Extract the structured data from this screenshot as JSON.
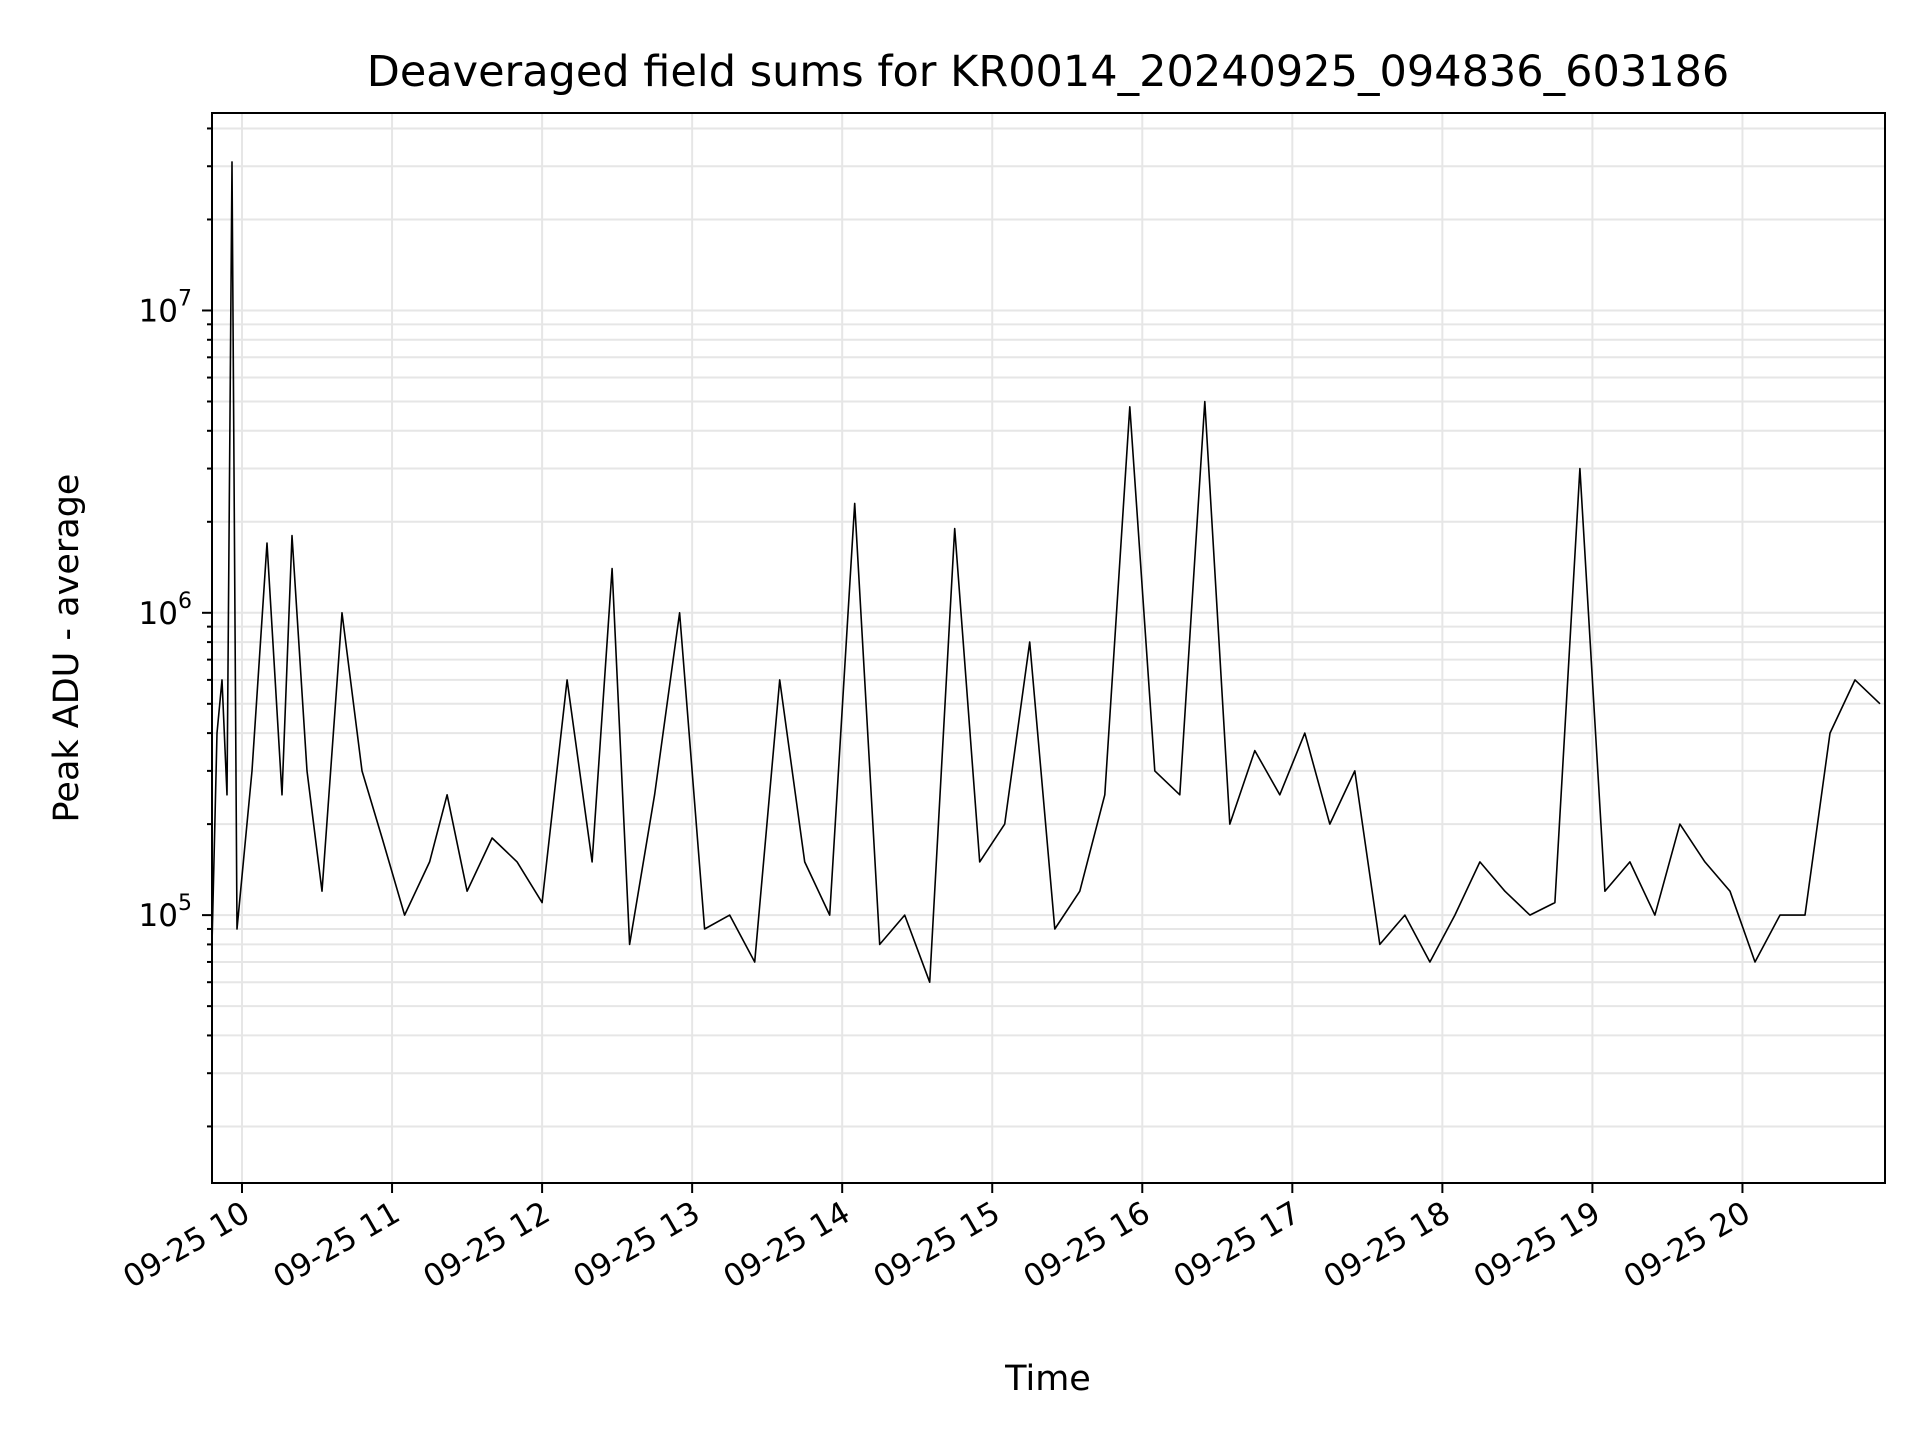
{
  "chart_data": {
    "type": "line",
    "title": "Deaveraged field sums for KR0014_20240925_094836_603186",
    "xlabel": "Time",
    "ylabel": "Peak ADU - average",
    "yscale": "log",
    "ylim": [
      13000,
      45000000
    ],
    "xlim": [
      "2024-09-25 09:48",
      "2024-09-25 20:57"
    ],
    "grid": true,
    "line_color": "#000000",
    "grid_color": "#e6e6e6",
    "x_ticks": [
      {
        "label": "09-25 10",
        "time": "2024-09-25 10:00"
      },
      {
        "label": "09-25 11",
        "time": "2024-09-25 11:00"
      },
      {
        "label": "09-25 12",
        "time": "2024-09-25 12:00"
      },
      {
        "label": "09-25 13",
        "time": "2024-09-25 13:00"
      },
      {
        "label": "09-25 14",
        "time": "2024-09-25 14:00"
      },
      {
        "label": "09-25 15",
        "time": "2024-09-25 15:00"
      },
      {
        "label": "09-25 16",
        "time": "2024-09-25 16:00"
      },
      {
        "label": "09-25 17",
        "time": "2024-09-25 17:00"
      },
      {
        "label": "09-25 18",
        "time": "2024-09-25 18:00"
      },
      {
        "label": "09-25 19",
        "time": "2024-09-25 19:00"
      },
      {
        "label": "09-25 20",
        "time": "2024-09-25 20:00"
      }
    ],
    "y_ticks": [
      {
        "base": "10",
        "exp": "5",
        "value": 100000
      },
      {
        "base": "10",
        "exp": "6",
        "value": 1000000
      },
      {
        "base": "10",
        "exp": "7",
        "value": 10000000
      }
    ],
    "x": [
      "2024-09-25 09:48",
      "2024-09-25 09:50",
      "2024-09-25 09:52",
      "2024-09-25 09:54",
      "2024-09-25 09:56",
      "2024-09-25 09:58",
      "2024-09-25 10:04",
      "2024-09-25 10:10",
      "2024-09-25 10:16",
      "2024-09-25 10:20",
      "2024-09-25 10:26",
      "2024-09-25 10:32",
      "2024-09-25 10:40",
      "2024-09-25 10:48",
      "2024-09-25 10:56",
      "2024-09-25 11:05",
      "2024-09-25 11:15",
      "2024-09-25 11:22",
      "2024-09-25 11:30",
      "2024-09-25 11:40",
      "2024-09-25 11:50",
      "2024-09-25 12:00",
      "2024-09-25 12:10",
      "2024-09-25 12:20",
      "2024-09-25 12:28",
      "2024-09-25 12:35",
      "2024-09-25 12:45",
      "2024-09-25 12:55",
      "2024-09-25 13:05",
      "2024-09-25 13:15",
      "2024-09-25 13:25",
      "2024-09-25 13:35",
      "2024-09-25 13:45",
      "2024-09-25 13:55",
      "2024-09-25 14:05",
      "2024-09-25 14:15",
      "2024-09-25 14:25",
      "2024-09-25 14:35",
      "2024-09-25 14:45",
      "2024-09-25 14:55",
      "2024-09-25 15:05",
      "2024-09-25 15:15",
      "2024-09-25 15:25",
      "2024-09-25 15:35",
      "2024-09-25 15:45",
      "2024-09-25 15:55",
      "2024-09-25 16:05",
      "2024-09-25 16:15",
      "2024-09-25 16:25",
      "2024-09-25 16:35",
      "2024-09-25 16:45",
      "2024-09-25 16:55",
      "2024-09-25 17:05",
      "2024-09-25 17:15",
      "2024-09-25 17:25",
      "2024-09-25 17:35",
      "2024-09-25 17:45",
      "2024-09-25 17:55",
      "2024-09-25 18:05",
      "2024-09-25 18:15",
      "2024-09-25 18:25",
      "2024-09-25 18:35",
      "2024-09-25 18:45",
      "2024-09-25 18:55",
      "2024-09-25 19:05",
      "2024-09-25 19:15",
      "2024-09-25 19:25",
      "2024-09-25 19:35",
      "2024-09-25 19:45",
      "2024-09-25 19:55",
      "2024-09-25 20:05",
      "2024-09-25 20:15",
      "2024-09-25 20:25",
      "2024-09-25 20:35",
      "2024-09-25 20:45",
      "2024-09-25 20:55"
    ],
    "y": [
      80000,
      400000,
      600000,
      250000,
      31000000,
      90000,
      300000,
      1700000,
      250000,
      1800000,
      300000,
      120000,
      1000000,
      300000,
      180000,
      100000,
      150000,
      250000,
      120000,
      180000,
      150000,
      110000,
      600000,
      150000,
      1400000,
      80000,
      250000,
      1000000,
      90000,
      100000,
      70000,
      600000,
      150000,
      100000,
      2300000,
      80000,
      100000,
      60000,
      1900000,
      150000,
      200000,
      800000,
      90000,
      120000,
      250000,
      4800000,
      300000,
      250000,
      5000000,
      200000,
      350000,
      250000,
      400000,
      200000,
      300000,
      80000,
      100000,
      70000,
      100000,
      150000,
      120000,
      100000,
      110000,
      3000000,
      120000,
      150000,
      100000,
      200000,
      150000,
      120000,
      70000,
      100000,
      100000,
      400000,
      600000,
      500000
    ]
  }
}
